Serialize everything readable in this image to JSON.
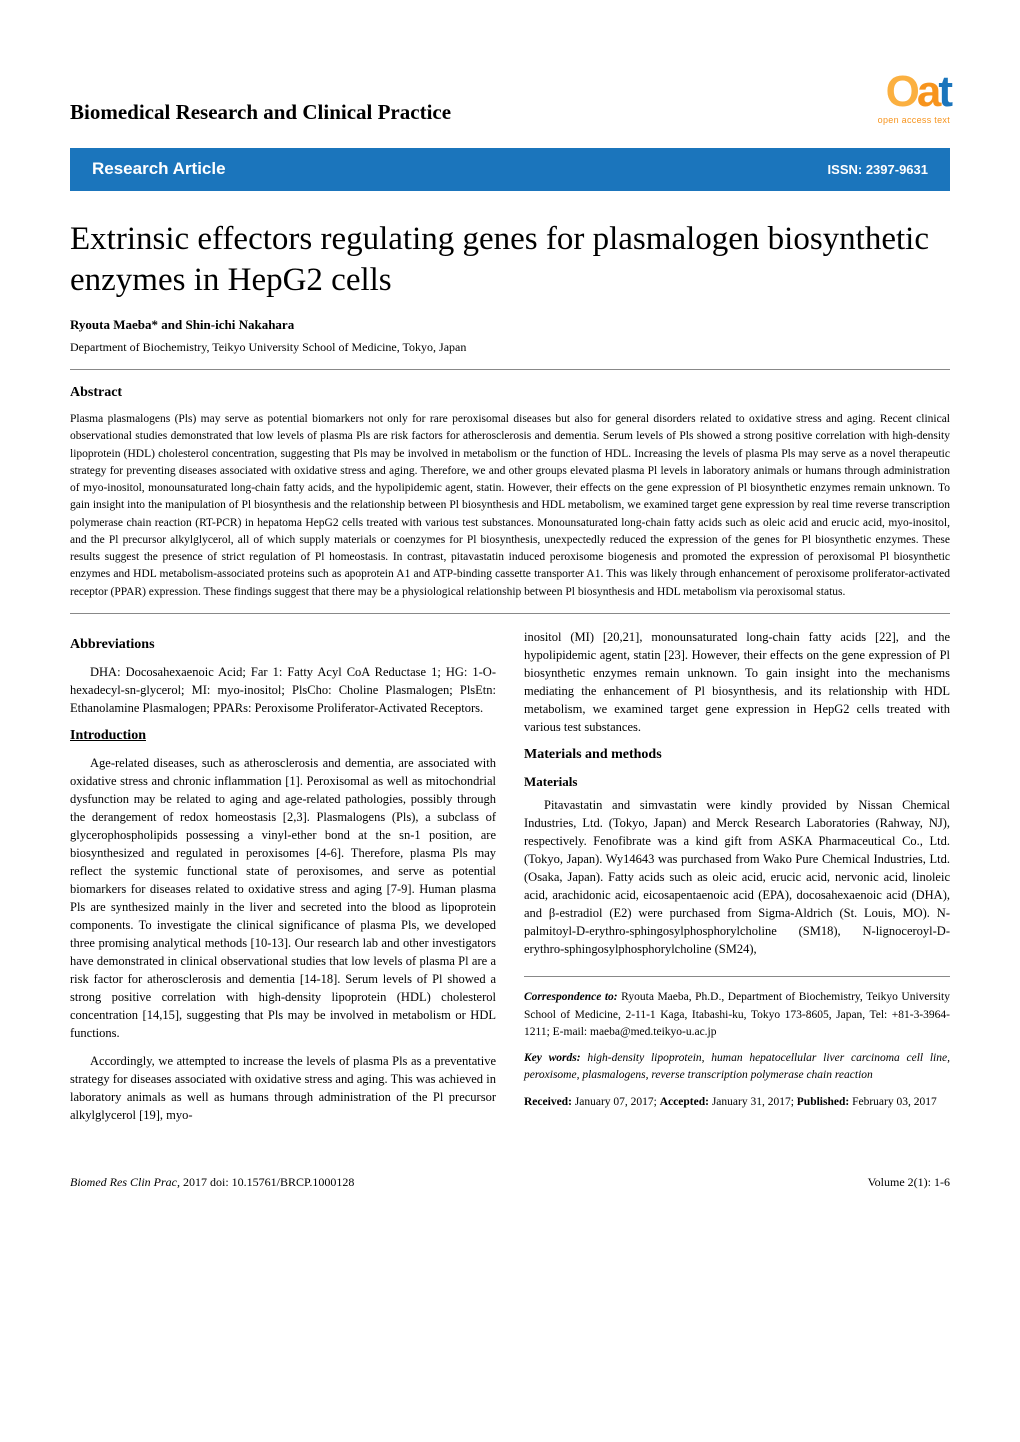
{
  "journal_name": "Biomedical Research and Clinical Practice",
  "logo": {
    "letters": [
      {
        "char": "O",
        "color": "#fbb040",
        "size": 44
      },
      {
        "char": "a",
        "color": "#f7941d",
        "size": 44
      },
      {
        "char": "t",
        "color": "#1b75bc",
        "size": 44
      }
    ],
    "tagline": "open access text"
  },
  "article_bar": {
    "type": "Research Article",
    "issn": "ISSN: 2397-9631",
    "bg_color": "#1b75bc",
    "text_color": "#ffffff"
  },
  "title": "Extrinsic effectors regulating genes for plasmalogen biosynthetic enzymes in HepG2 cells",
  "authors": "Ryouta Maeba* and Shin-ichi Nakahara",
  "affiliation": "Department of Biochemistry, Teikyo University School of Medicine, Tokyo, Japan",
  "abstract": {
    "heading": "Abstract",
    "text": "Plasma plasmalogens (Pls) may serve as potential biomarkers not only for rare peroxisomal diseases but also for general disorders related to oxidative stress and aging. Recent clinical observational studies demonstrated that low levels of plasma Pls are risk factors for atherosclerosis and dementia. Serum levels of Pls showed a strong positive correlation with high-density lipoprotein (HDL) cholesterol concentration, suggesting that Pls may be involved in metabolism or the function of HDL. Increasing the levels of plasma Pls may serve as a novel therapeutic strategy for preventing diseases associated with oxidative stress and aging. Therefore, we and other groups elevated plasma Pl levels in laboratory animals or humans through administration of myo-inositol, monounsaturated long-chain fatty acids, and the hypolipidemic agent, statin. However, their effects on the gene expression of Pl biosynthetic enzymes remain unknown. To gain insight into the manipulation of Pl biosynthesis and the relationship between Pl biosynthesis and HDL metabolism, we examined target gene expression by real time reverse transcription polymerase chain reaction (RT-PCR) in hepatoma HepG2 cells treated with various test substances. Monounsaturated long-chain fatty acids such as oleic acid and erucic acid, myo-inositol, and the Pl precursor alkylglycerol, all of which supply materials or coenzymes for Pl biosynthesis, unexpectedly reduced the expression of the genes for Pl biosynthetic enzymes. These results suggest the presence of strict regulation of Pl homeostasis. In contrast, pitavastatin induced peroxisome biogenesis and promoted the expression of peroxisomal Pl biosynthetic enzymes and HDL metabolism-associated proteins such as apoprotein A1 and ATP-binding cassette transporter A1. This was likely through enhancement of peroxisome proliferator-activated receptor (PPAR) expression. These findings suggest that there may be a physiological relationship between Pl biosynthesis and HDL metabolism via peroxisomal status."
  },
  "left_column": {
    "abbreviations": {
      "heading": "Abbreviations",
      "text": "DHA: Docosahexaenoic Acid; Far 1: Fatty Acyl CoA Reductase 1; HG: 1-O-hexadecyl-sn-glycerol; MI: myo-inositol; PlsCho: Choline Plasmalogen; PlsEtn: Ethanolamine Plasmalogen; PPARs: Peroxisome Proliferator-Activated Receptors."
    },
    "introduction": {
      "heading": "Introduction",
      "p1": "Age-related diseases, such as atherosclerosis and dementia, are associated with oxidative stress and chronic inflammation [1]. Peroxisomal as well as mitochondrial dysfunction may be related to aging and age-related pathologies, possibly through the derangement of redox homeostasis [2,3]. Plasmalogens (Pls), a subclass of glycerophospholipids possessing a vinyl-ether bond at the sn-1 position, are biosynthesized and regulated in peroxisomes [4-6]. Therefore, plasma Pls may reflect the systemic functional state of peroxisomes, and serve as potential biomarkers for diseases related to oxidative stress and aging [7-9]. Human plasma Pls are synthesized mainly in the liver and secreted into the blood as lipoprotein components. To investigate the clinical significance of plasma Pls, we developed three promising analytical methods [10-13]. Our research lab and other investigators have demonstrated in clinical observational studies that low levels of plasma Pl are a risk factor for atherosclerosis and dementia [14-18]. Serum levels of Pl showed a strong positive correlation with high-density lipoprotein (HDL) cholesterol concentration [14,15], suggesting that Pls may be involved in metabolism or HDL functions.",
      "p2": "Accordingly, we attempted to increase the levels of plasma Pls as a preventative strategy for diseases associated with oxidative stress and aging. This was achieved in laboratory animals as well as humans through administration of the Pl precursor alkylglycerol [19], myo-"
    }
  },
  "right_column": {
    "intro_continued": "inositol (MI) [20,21], monounsaturated long-chain fatty acids [22], and the hypolipidemic agent, statin [23]. However, their effects on the gene expression of Pl biosynthetic enzymes remain unknown. To gain insight into the mechanisms mediating the enhancement of Pl biosynthesis, and its relationship with HDL metabolism, we examined target gene expression in HepG2 cells treated with various test substances.",
    "materials_methods": {
      "heading": "Materials and methods",
      "sub1": "Materials",
      "p1": "Pitavastatin and simvastatin were kindly provided by Nissan Chemical Industries, Ltd. (Tokyo, Japan) and Merck Research Laboratories (Rahway, NJ), respectively. Fenofibrate was a kind gift from ASKA Pharmaceutical Co., Ltd. (Tokyo, Japan). Wy14643 was purchased from Wako Pure Chemical Industries, Ltd. (Osaka, Japan). Fatty acids such as oleic acid, erucic acid, nervonic acid, linoleic acid, arachidonic acid, eicosapentaenoic acid (EPA), docosahexaenoic acid (DHA), and β-estradiol (E2) were purchased from Sigma-Aldrich (St. Louis, MO). N-palmitoyl-D-erythro-sphingosylphosphorylcholine (SM18), N-lignoceroyl-D-erythro-sphingosylphosphorylcholine (SM24),"
    },
    "correspondence": {
      "label": "Correspondence to:",
      "text": " Ryouta Maeba, Ph.D., Department of Biochemistry, Teikyo University School of Medicine, 2-11-1 Kaga, Itabashi-ku, Tokyo 173-8605, Japan, Tel: +81-3-3964-1211; E-mail: maeba@med.teikyo-u.ac.jp"
    },
    "keywords": {
      "label": "Key words:",
      "text": " high-density lipoprotein, human hepatocellular liver carcinoma cell line, peroxisome, plasmalogens, reverse transcription polymerase chain reaction"
    },
    "dates": {
      "received_label": "Received:",
      "received": " January 07, 2017; ",
      "accepted_label": "Accepted:",
      "accepted": " January 31, 2017; ",
      "published_label": "Published:",
      "published": " February 03, 2017"
    }
  },
  "footer": {
    "left_italic": "Biomed Res Clin Prac,",
    "left_rest": " 2017    doi: 10.15761/BRCP.1000128",
    "right": "Volume 2(1): 1-6"
  },
  "colors": {
    "bar_bg": "#1b75bc",
    "bar_text": "#ffffff",
    "logo_o": "#fbb040",
    "logo_a": "#f7941d",
    "logo_t": "#1b75bc",
    "body_text": "#000000",
    "hr": "#888888"
  }
}
